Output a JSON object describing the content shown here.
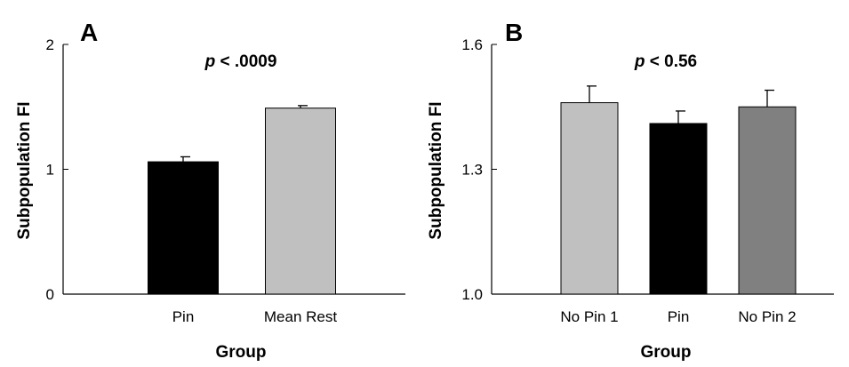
{
  "chart_data": [
    {
      "type": "bar",
      "panel_label": "A",
      "annotation": {
        "prefix": "p",
        "rest": " < .0009"
      },
      "xlabel": "Group",
      "ylabel": "Subpopulation FI",
      "ylim": [
        0,
        2
      ],
      "yticks": [
        "0",
        "1",
        "2"
      ],
      "ytick_values": [
        0,
        1,
        2
      ],
      "categories": [
        "Pin",
        "Mean Rest"
      ],
      "values": [
        1.06,
        1.49
      ],
      "errors": [
        0.04,
        0.02
      ],
      "colors": [
        "#000000",
        "#c0c0c0"
      ],
      "grid": false
    },
    {
      "type": "bar",
      "panel_label": "B",
      "annotation": {
        "prefix": "p",
        "rest": " < 0.56"
      },
      "xlabel": "Group",
      "ylabel": "Subpopulation FI",
      "ylim": [
        1.0,
        1.6
      ],
      "yticks": [
        "1.0",
        "1.3",
        "1.6"
      ],
      "ytick_values": [
        1.0,
        1.3,
        1.6
      ],
      "categories": [
        "No Pin 1",
        "Pin",
        "No Pin 2"
      ],
      "values": [
        1.46,
        1.41,
        1.45
      ],
      "errors": [
        0.04,
        0.03,
        0.04
      ],
      "colors": [
        "#c0c0c0",
        "#000000",
        "#808080"
      ],
      "grid": false
    }
  ]
}
